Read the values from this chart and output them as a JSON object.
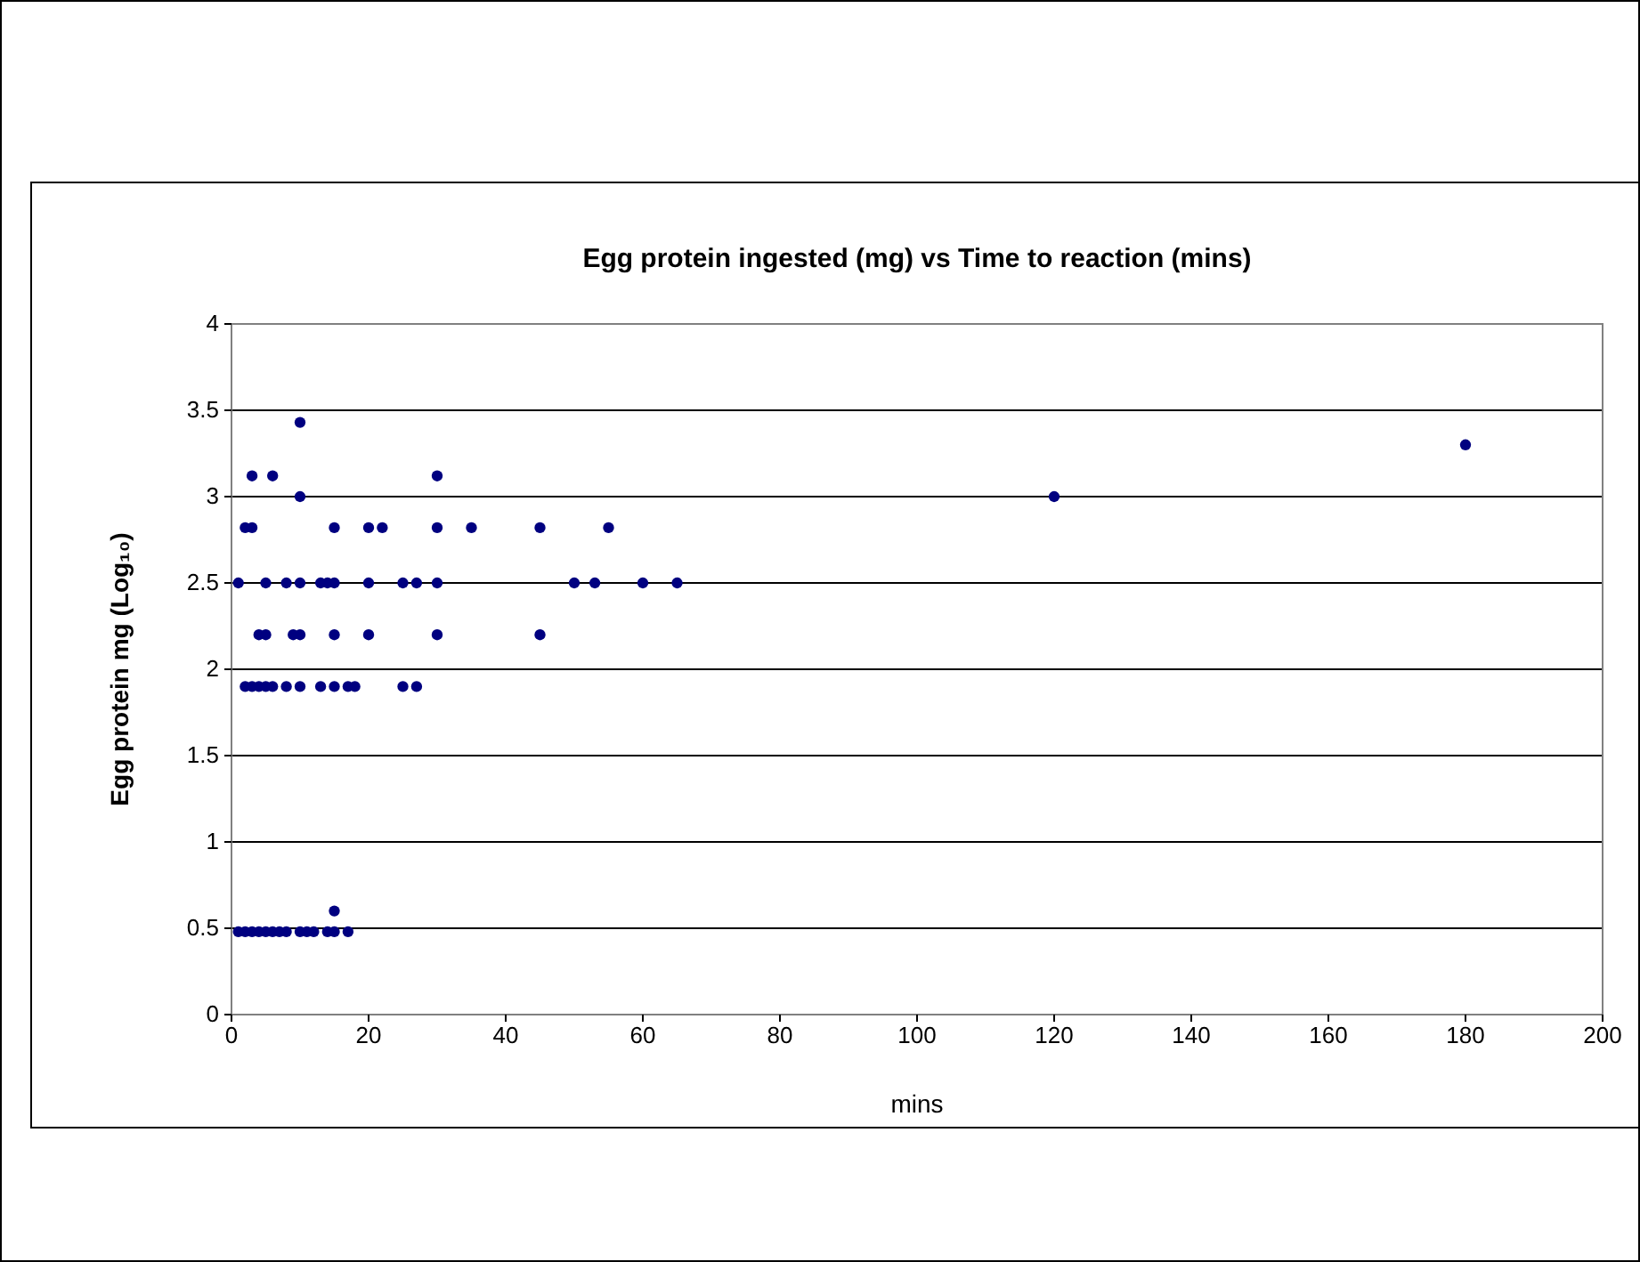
{
  "chart_data": {
    "type": "scatter",
    "title": "Egg protein ingested (mg) vs Time to reaction (mins)",
    "xlabel": "mins",
    "ylabel": "Egg protein mg (Log₁₀)",
    "x": [
      10,
      3,
      6,
      30,
      10,
      2,
      3,
      15,
      20,
      22,
      30,
      35,
      45,
      55,
      1,
      5,
      8,
      10,
      13,
      14,
      15,
      20,
      25,
      27,
      30,
      50,
      53,
      60,
      65,
      4,
      5,
      9,
      10,
      15,
      20,
      30,
      45,
      2,
      3,
      4,
      5,
      6,
      8,
      10,
      13,
      15,
      17,
      18,
      25,
      27,
      1,
      2,
      3,
      4,
      5,
      6,
      7,
      8,
      10,
      11,
      12,
      14,
      15,
      17,
      15,
      120,
      180
    ],
    "series": [
      {
        "color": "#000080",
        "values": [
          3.43,
          3.12,
          3.12,
          3.12,
          3.0,
          2.82,
          2.82,
          2.82,
          2.82,
          2.82,
          2.82,
          2.82,
          2.82,
          2.82,
          2.5,
          2.5,
          2.5,
          2.5,
          2.5,
          2.5,
          2.5,
          2.5,
          2.5,
          2.5,
          2.5,
          2.5,
          2.5,
          2.5,
          2.5,
          2.2,
          2.2,
          2.2,
          2.2,
          2.2,
          2.2,
          2.2,
          2.2,
          1.9,
          1.9,
          1.9,
          1.9,
          1.9,
          1.9,
          1.9,
          1.9,
          1.9,
          1.9,
          1.9,
          1.9,
          1.9,
          0.48,
          0.48,
          0.48,
          0.48,
          0.48,
          0.48,
          0.48,
          0.48,
          0.48,
          0.48,
          0.48,
          0.48,
          0.48,
          0.48,
          0.6,
          3.0,
          3.3
        ]
      }
    ],
    "xlim": [
      0,
      200
    ],
    "xticks": [
      0,
      20,
      40,
      60,
      80,
      100,
      120,
      140,
      160,
      180,
      200
    ],
    "ylim": [
      0,
      4
    ],
    "yticks": [
      0,
      0.5,
      1,
      1.5,
      2,
      2.5,
      3,
      3.5,
      4
    ],
    "grid": "y",
    "marker": "circle"
  }
}
